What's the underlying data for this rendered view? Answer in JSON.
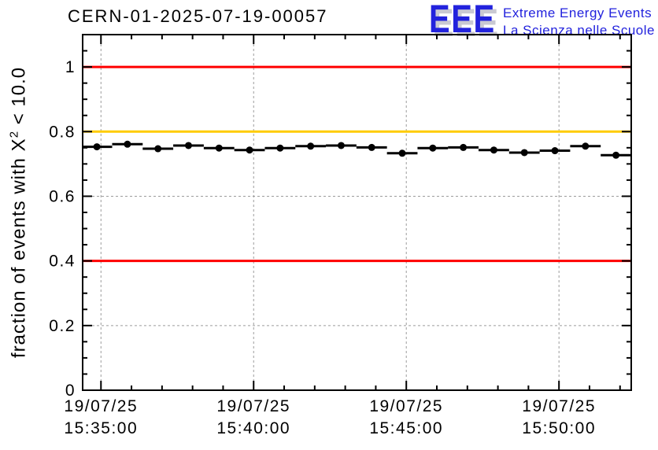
{
  "header": {
    "title": "CERN-01-2025-07-19-00057",
    "logo": {
      "acronym": "EEE",
      "line1": "Extreme Energy Events",
      "line2": "La Scienza nelle Scuole",
      "blue": "#2222dd",
      "shadow": "#c9c9d2"
    }
  },
  "chart_data": {
    "type": "scatter",
    "title": "CERN-01-2025-07-19-00057",
    "ylabel": "fraction of events with X^2 < 10.0",
    "ylabel_parts": {
      "prefix": "fraction of events with X",
      "sup": "2",
      "suffix": " < 10.0"
    },
    "xlabel": "",
    "x_type": "time",
    "date_label": "19/07/25",
    "x_range": [
      "15:34:24",
      "15:52:22"
    ],
    "x_major_ticks": [
      {
        "date": "19/07/25",
        "time": "15:35:00"
      },
      {
        "date": "19/07/25",
        "time": "15:40:00"
      },
      {
        "date": "19/07/25",
        "time": "15:45:00"
      },
      {
        "date": "19/07/25",
        "time": "15:50:00"
      }
    ],
    "x_minor_step_seconds": 60,
    "ylim": [
      0,
      1.1
    ],
    "y_major_ticks": [
      0,
      0.2,
      0.4,
      0.6,
      0.8,
      1
    ],
    "y_tick_labels": [
      "0",
      "0.2",
      "0.4",
      "0.6",
      "0.8",
      "1"
    ],
    "y_minor_step": 0.05,
    "grid": {
      "style": "dashed",
      "color": "#9c9c9c",
      "at": "major-ticks"
    },
    "legend": "none",
    "reference_lines": [
      {
        "y": 1.0,
        "color": "#ff0000"
      },
      {
        "y": 0.8,
        "color": "#ffcc00"
      },
      {
        "y": 0.4,
        "color": "#ff0000"
      }
    ],
    "series": [
      {
        "name": "fraction of events with X^2 < 10.0 per 1-min bin",
        "marker": "filled-circle",
        "color": "#000000",
        "x_bin_halfwidth_seconds": 30,
        "points": [
          {
            "t": "15:34:52",
            "y": 0.753
          },
          {
            "t": "15:35:52",
            "y": 0.761
          },
          {
            "t": "15:36:52",
            "y": 0.747
          },
          {
            "t": "15:37:52",
            "y": 0.757
          },
          {
            "t": "15:38:52",
            "y": 0.749
          },
          {
            "t": "15:39:52",
            "y": 0.743
          },
          {
            "t": "15:40:52",
            "y": 0.749
          },
          {
            "t": "15:41:52",
            "y": 0.755
          },
          {
            "t": "15:42:52",
            "y": 0.757
          },
          {
            "t": "15:43:52",
            "y": 0.751
          },
          {
            "t": "15:44:52",
            "y": 0.733
          },
          {
            "t": "15:45:52",
            "y": 0.749
          },
          {
            "t": "15:46:52",
            "y": 0.751
          },
          {
            "t": "15:47:52",
            "y": 0.743
          },
          {
            "t": "15:48:52",
            "y": 0.735
          },
          {
            "t": "15:49:52",
            "y": 0.741
          },
          {
            "t": "15:50:52",
            "y": 0.755
          },
          {
            "t": "15:51:52",
            "y": 0.727
          }
        ]
      }
    ]
  }
}
